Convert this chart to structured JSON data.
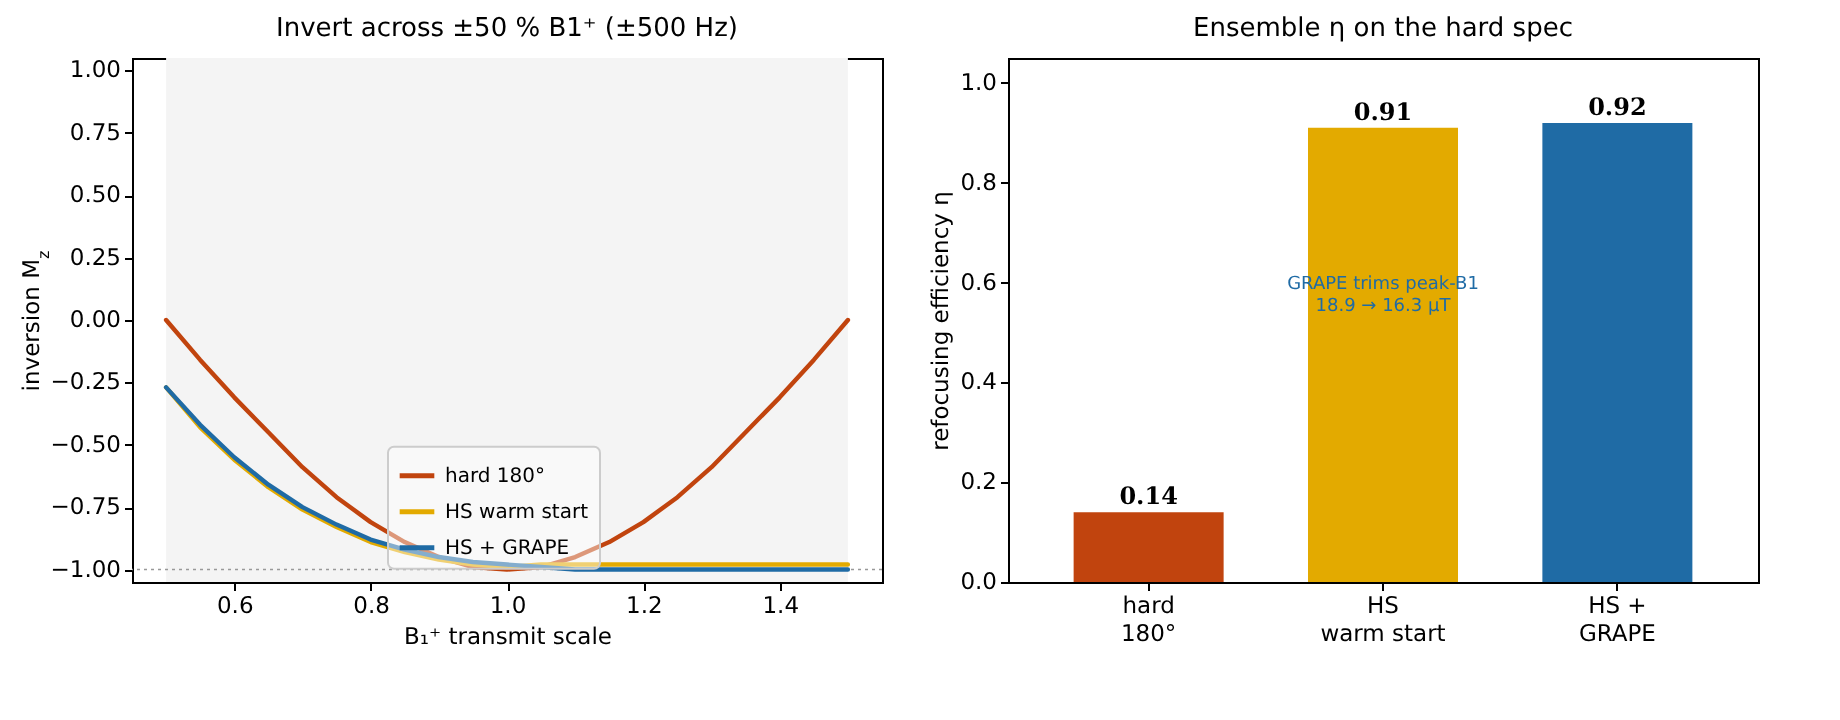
{
  "chart_data": [
    {
      "type": "line",
      "title": "Invert across ±50 % B1⁺  (±500 Hz)",
      "xlabel": "B₁⁺ transmit scale",
      "ylabel": "inversion M$_{z}$",
      "x": [
        0.5,
        0.55,
        0.6,
        0.65,
        0.7,
        0.75,
        0.8,
        0.85,
        0.9,
        0.95,
        1.0,
        1.05,
        1.1,
        1.15,
        1.2,
        1.25,
        1.3,
        1.35,
        1.4,
        1.45,
        1.5
      ],
      "series": [
        {
          "name": "hard 180°",
          "color": "#c1440e",
          "values": [
            0,
            -0.16,
            -0.31,
            -0.45,
            -0.59,
            -0.71,
            -0.81,
            -0.89,
            -0.95,
            -0.99,
            -1.0,
            -0.99,
            -0.95,
            -0.89,
            -0.81,
            -0.71,
            -0.59,
            -0.45,
            -0.31,
            -0.16,
            0
          ]
        },
        {
          "name": "HS warm start",
          "color": "#e3aa00",
          "values": [
            -0.27,
            -0.43,
            -0.56,
            -0.67,
            -0.76,
            -0.83,
            -0.89,
            -0.93,
            -0.96,
            -0.98,
            -0.99,
            -0.98,
            -0.98,
            -0.98,
            -0.98,
            -0.98,
            -0.98,
            -0.98,
            -0.98,
            -0.98,
            -0.98
          ]
        },
        {
          "name": "HS + GRAPE",
          "color": "#1f6ba5",
          "values": [
            -0.27,
            -0.42,
            -0.55,
            -0.66,
            -0.75,
            -0.82,
            -0.88,
            -0.92,
            -0.95,
            -0.97,
            -0.98,
            -0.99,
            -1.0,
            -1.0,
            -1.0,
            -1.0,
            -1.0,
            -1.0,
            -1.0,
            -1.0,
            -1.0
          ]
        }
      ],
      "xlim": [
        0.45,
        1.55
      ],
      "xticks": [
        0.6,
        0.8,
        {
          "value": 1.0,
          "label": "1.0"
        },
        1.2,
        1.4
      ],
      "ylim": [
        -1.05,
        1.05
      ],
      "yticks": [
        {
          "value": -1,
          "label": "−1.00"
        },
        {
          "value": -0.75,
          "label": "−0.75"
        },
        {
          "value": -0.5,
          "label": "−0.50"
        },
        {
          "value": -0.25,
          "label": "−0.25"
        },
        {
          "value": 0,
          "label": "0.00"
        },
        {
          "value": 0.25,
          "label": "0.25"
        },
        {
          "value": 0.5,
          "label": "0.50"
        },
        {
          "value": 0.75,
          "label": "0.75"
        },
        {
          "value": 1,
          "label": "1.00"
        }
      ],
      "bands": [
        {
          "axis": "x",
          "from": 0.5,
          "to": 1.5,
          "color": "#f4f4f4"
        }
      ],
      "ref_lines": [
        {
          "axis": "y",
          "value": -1,
          "color": "#999999",
          "line_style": "dotted"
        }
      ],
      "legend": "bottom",
      "grid": false
    },
    {
      "type": "bar",
      "title": "Ensemble η on the hard spec",
      "ylabel": "refocusing efficiency  η",
      "categories": [
        "hard\n180°",
        "HS\nwarm start",
        "HS +\nGRAPE"
      ],
      "values": [
        0.14,
        0.91,
        0.92
      ],
      "colors": [
        "#c1440e",
        "#e3aa00",
        "#1f6ba5"
      ],
      "ylim": [
        0,
        1.05
      ],
      "yticks": [
        {
          "value": 0,
          "label": "0.0"
        },
        0.2,
        0.4,
        0.6,
        0.8,
        {
          "value": 1,
          "label": "1.0"
        }
      ],
      "data_labels": true,
      "grid": false,
      "annotations": [
        "GRAPE trims peak-B1\n18.9 → 16.3 µT"
      ]
    }
  ]
}
